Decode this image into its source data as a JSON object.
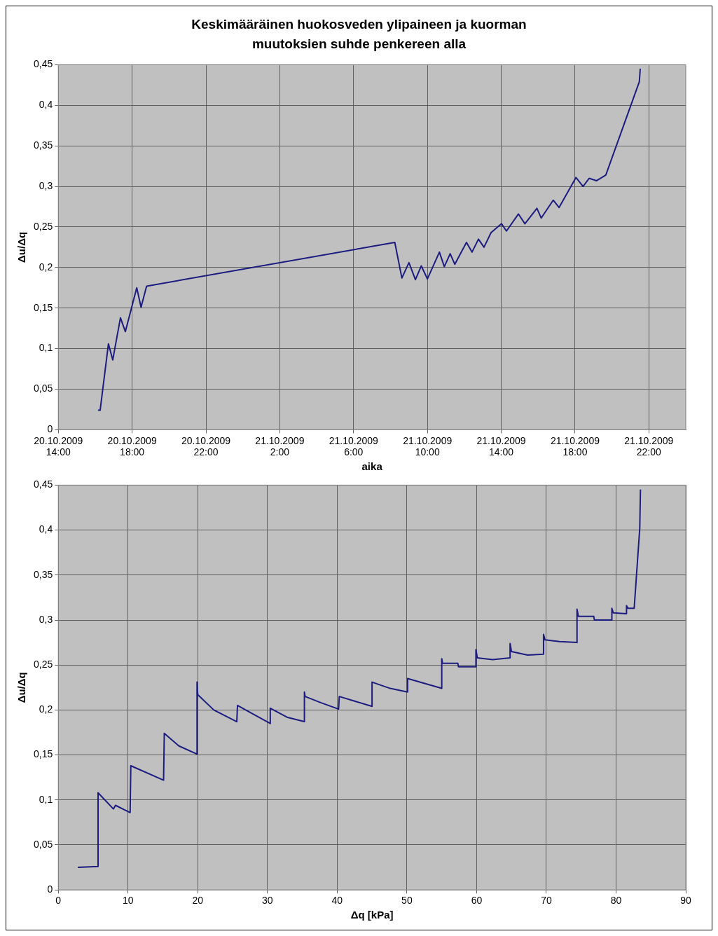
{
  "chart_data": [
    {
      "type": "line",
      "title": "Keskimääräinen huokosveden ylipaineen ja kuorman muutoksien suhde penkereen alla",
      "xlabel": "aika",
      "ylabel": "Δu/Δq",
      "grid": true,
      "legend": false,
      "marker": "none",
      "line_style": "solid",
      "xlim": [
        "2009-10-20T14:00",
        "2009-10-22T00:00"
      ],
      "xticks": [
        {
          "value": "2009-10-20T14:00",
          "label": "20.10.2009 14:00"
        },
        {
          "value": "2009-10-20T18:00",
          "label": "20.10.2009 18:00"
        },
        {
          "value": "2009-10-20T22:00",
          "label": "20.10.2009 22:00"
        },
        {
          "value": "2009-10-21T02:00",
          "label": "21.10.2009 2:00"
        },
        {
          "value": "2009-10-21T06:00",
          "label": "21.10.2009 6:00"
        },
        {
          "value": "2009-10-21T10:00",
          "label": "21.10.2009 10:00"
        },
        {
          "value": "2009-10-21T14:00",
          "label": "21.10.2009 14:00"
        },
        {
          "value": "2009-10-21T18:00",
          "label": "21.10.2009 18:00"
        },
        {
          "value": "2009-10-21T22:00",
          "label": "21.10.2009 22:00"
        }
      ],
      "ylim": [
        0,
        0.45
      ],
      "yticks": [
        0,
        {
          "value": 0.05,
          "label": "0,05"
        },
        {
          "value": 0.1,
          "label": "0,1"
        },
        {
          "value": 0.15,
          "label": "0,15"
        },
        {
          "value": 0.2,
          "label": "0,2"
        },
        {
          "value": 0.25,
          "label": "0,25"
        },
        {
          "value": 0.3,
          "label": "0,3"
        },
        {
          "value": 0.35,
          "label": "0,35"
        },
        {
          "value": 0.4,
          "label": "0,4"
        },
        {
          "value": 0.45,
          "label": "0,45"
        }
      ],
      "series": [
        {
          "color": "#1c1c80",
          "x": [
            "2009-10-20T16:09",
            "2009-10-20T16:16",
            "2009-10-20T16:43",
            "2009-10-20T16:57",
            "2009-10-20T17:22",
            "2009-10-20T17:38",
            "2009-10-20T18:15",
            "2009-10-20T18:29",
            "2009-10-20T18:47",
            "2009-10-21T08:14",
            "2009-10-21T08:37",
            "2009-10-21T09:00",
            "2009-10-21T09:21",
            "2009-10-21T09:40",
            "2009-10-21T10:00",
            "2009-10-21T10:39",
            "2009-10-21T10:55",
            "2009-10-21T11:14",
            "2009-10-21T11:29",
            "2009-10-21T12:07",
            "2009-10-21T12:25",
            "2009-10-21T12:46",
            "2009-10-21T13:04",
            "2009-10-21T13:27",
            "2009-10-21T14:01",
            "2009-10-21T14:17",
            "2009-10-21T14:56",
            "2009-10-21T15:17",
            "2009-10-21T15:56",
            "2009-10-21T16:10",
            "2009-10-21T16:49",
            "2009-10-21T17:08",
            "2009-10-21T18:03",
            "2009-10-21T18:26",
            "2009-10-21T18:46",
            "2009-10-21T19:10",
            "2009-10-21T19:40",
            "2009-10-21T21:29",
            "2009-10-21T21:32"
          ],
          "values": [
            0.024,
            0.024,
            0.106,
            0.086,
            0.138,
            0.121,
            0.175,
            0.151,
            0.177,
            0.231,
            0.187,
            0.206,
            0.185,
            0.202,
            0.186,
            0.219,
            0.201,
            0.217,
            0.204,
            0.231,
            0.219,
            0.235,
            0.225,
            0.243,
            0.254,
            0.245,
            0.266,
            0.254,
            0.273,
            0.261,
            0.283,
            0.274,
            0.311,
            0.3,
            0.31,
            0.307,
            0.314,
            0.429,
            0.445
          ]
        }
      ]
    },
    {
      "type": "line",
      "xlabel": "Δq [kPa]",
      "ylabel": "Δu/Δq",
      "grid": true,
      "legend": false,
      "marker": "none",
      "line_style": "solid",
      "xlim": [
        0,
        90
      ],
      "xticks": [
        0,
        10,
        20,
        30,
        40,
        50,
        60,
        70,
        80,
        90
      ],
      "ylim": [
        0,
        0.45
      ],
      "yticks": [
        0,
        {
          "value": 0.05,
          "label": "0,05"
        },
        {
          "value": 0.1,
          "label": "0,1"
        },
        {
          "value": 0.15,
          "label": "0,15"
        },
        {
          "value": 0.2,
          "label": "0,2"
        },
        {
          "value": 0.25,
          "label": "0,25"
        },
        {
          "value": 0.3,
          "label": "0,3"
        },
        {
          "value": 0.35,
          "label": "0,35"
        },
        {
          "value": 0.4,
          "label": "0,4"
        },
        {
          "value": 0.45,
          "label": "0,45"
        }
      ],
      "series": [
        {
          "color": "#1c1c80",
          "x": [
            2.8,
            5.7,
            5.7,
            7.9,
            8.2,
            10.3,
            10.4,
            15.1,
            15.2,
            17.3,
            19.9,
            19.9,
            20.0,
            22.3,
            25.6,
            25.7,
            30.4,
            30.4,
            32.8,
            35.3,
            35.3,
            35.4,
            37.7,
            40.2,
            40.3,
            45.0,
            45.0,
            47.6,
            50.1,
            50.1,
            55.0,
            55.0,
            55.1,
            57.3,
            57.4,
            59.9,
            59.9,
            60.1,
            62.3,
            64.8,
            64.8,
            65.0,
            67.3,
            69.6,
            69.6,
            69.8,
            71.9,
            74.4,
            74.4,
            74.6,
            76.8,
            76.9,
            79.4,
            79.4,
            79.6,
            81.5,
            81.5,
            81.7,
            82.6,
            83.4,
            83.5
          ],
          "values": [
            0.025,
            0.026,
            0.108,
            0.09,
            0.094,
            0.086,
            0.138,
            0.122,
            0.174,
            0.16,
            0.151,
            0.231,
            0.217,
            0.2,
            0.187,
            0.205,
            0.185,
            0.202,
            0.192,
            0.187,
            0.22,
            0.215,
            0.208,
            0.201,
            0.215,
            0.204,
            0.231,
            0.224,
            0.22,
            0.235,
            0.224,
            0.257,
            0.252,
            0.252,
            0.248,
            0.248,
            0.267,
            0.258,
            0.256,
            0.258,
            0.274,
            0.265,
            0.261,
            0.262,
            0.284,
            0.278,
            0.276,
            0.275,
            0.312,
            0.304,
            0.304,
            0.3,
            0.3,
            0.313,
            0.308,
            0.307,
            0.316,
            0.313,
            0.313,
            0.402,
            0.445
          ]
        }
      ]
    }
  ]
}
